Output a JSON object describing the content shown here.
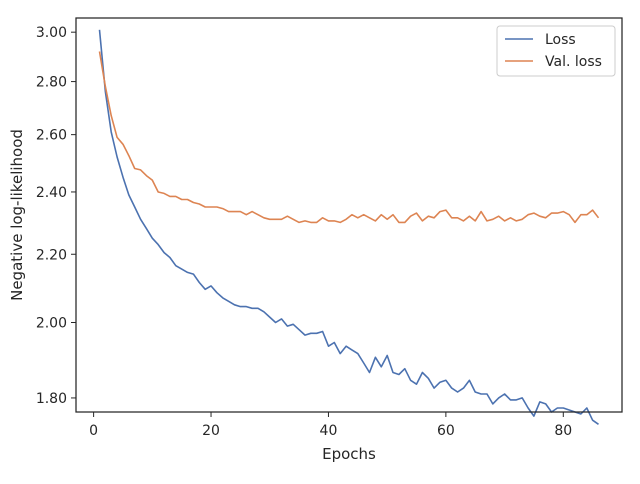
{
  "chart_data": {
    "type": "line",
    "title": "",
    "xlabel": "Epochs",
    "ylabel": "Negative log-likelihood",
    "y_scale": "log",
    "xlim": [
      -3,
      90
    ],
    "ylim": [
      1.765,
      3.06
    ],
    "x_ticks": [
      0,
      20,
      40,
      60,
      80
    ],
    "x_tick_labels": [
      "0",
      "20",
      "40",
      "60",
      "80"
    ],
    "y_ticks": [
      1.8,
      2.0,
      2.2,
      2.4,
      2.6,
      2.8,
      3.0
    ],
    "y_tick_labels": [
      "1.80",
      "2.00",
      "2.20",
      "2.40",
      "2.60",
      "2.80",
      "3.00"
    ],
    "grid": false,
    "legend_position": "top-right",
    "series": [
      {
        "name": "Loss",
        "color": "#4c72b0",
        "x": [
          1,
          2,
          3,
          4,
          5,
          6,
          7,
          8,
          9,
          10,
          11,
          12,
          13,
          14,
          15,
          16,
          17,
          18,
          19,
          20,
          21,
          22,
          23,
          24,
          25,
          26,
          27,
          28,
          29,
          30,
          31,
          32,
          33,
          34,
          35,
          36,
          37,
          38,
          39,
          40,
          41,
          42,
          43,
          44,
          45,
          46,
          47,
          48,
          49,
          50,
          51,
          52,
          53,
          54,
          55,
          56,
          57,
          58,
          59,
          60,
          61,
          62,
          63,
          64,
          65,
          66,
          67,
          68,
          69,
          70,
          71,
          72,
          73,
          74,
          75,
          76,
          77,
          78,
          79,
          80,
          81,
          82,
          83,
          84,
          85,
          86
        ],
        "values": [
          3.01,
          2.76,
          2.61,
          2.52,
          2.45,
          2.39,
          2.35,
          2.31,
          2.28,
          2.25,
          2.23,
          2.205,
          2.19,
          2.165,
          2.155,
          2.145,
          2.14,
          2.115,
          2.095,
          2.105,
          2.085,
          2.07,
          2.06,
          2.05,
          2.045,
          2.045,
          2.04,
          2.04,
          2.03,
          2.015,
          2.0,
          2.01,
          1.99,
          1.995,
          1.98,
          1.965,
          1.97,
          1.97,
          1.975,
          1.935,
          1.945,
          1.915,
          1.935,
          1.925,
          1.915,
          1.89,
          1.865,
          1.905,
          1.88,
          1.91,
          1.865,
          1.86,
          1.875,
          1.845,
          1.835,
          1.865,
          1.85,
          1.825,
          1.84,
          1.845,
          1.825,
          1.815,
          1.825,
          1.845,
          1.815,
          1.81,
          1.81,
          1.785,
          1.8,
          1.81,
          1.795,
          1.795,
          1.8,
          1.775,
          1.755,
          1.79,
          1.785,
          1.765,
          1.775,
          1.775,
          1.77,
          1.765,
          1.76,
          1.775,
          1.745,
          1.735
        ]
      },
      {
        "name": "Val. loss",
        "color": "#dd8452",
        "x": [
          1,
          2,
          3,
          4,
          5,
          6,
          7,
          8,
          9,
          10,
          11,
          12,
          13,
          14,
          15,
          16,
          17,
          18,
          19,
          20,
          21,
          22,
          23,
          24,
          25,
          26,
          27,
          28,
          29,
          30,
          31,
          32,
          33,
          34,
          35,
          36,
          37,
          38,
          39,
          40,
          41,
          42,
          43,
          44,
          45,
          46,
          47,
          48,
          49,
          50,
          51,
          52,
          53,
          54,
          55,
          56,
          57,
          58,
          59,
          60,
          61,
          62,
          63,
          64,
          65,
          66,
          67,
          68,
          69,
          70,
          71,
          72,
          73,
          74,
          75,
          76,
          77,
          78,
          79,
          80,
          81,
          82,
          83,
          84,
          85,
          86
        ],
        "values": [
          2.92,
          2.78,
          2.67,
          2.59,
          2.565,
          2.525,
          2.48,
          2.475,
          2.455,
          2.44,
          2.4,
          2.395,
          2.385,
          2.385,
          2.375,
          2.375,
          2.365,
          2.36,
          2.35,
          2.35,
          2.35,
          2.345,
          2.335,
          2.335,
          2.335,
          2.325,
          2.335,
          2.325,
          2.315,
          2.31,
          2.31,
          2.31,
          2.32,
          2.31,
          2.3,
          2.305,
          2.3,
          2.3,
          2.315,
          2.305,
          2.305,
          2.3,
          2.31,
          2.325,
          2.315,
          2.325,
          2.315,
          2.305,
          2.325,
          2.31,
          2.325,
          2.3,
          2.3,
          2.32,
          2.33,
          2.305,
          2.32,
          2.315,
          2.335,
          2.34,
          2.315,
          2.315,
          2.305,
          2.32,
          2.305,
          2.335,
          2.305,
          2.31,
          2.32,
          2.305,
          2.315,
          2.305,
          2.31,
          2.325,
          2.33,
          2.32,
          2.315,
          2.33,
          2.33,
          2.335,
          2.325,
          2.3,
          2.325,
          2.325,
          2.34,
          2.315
        ]
      }
    ]
  }
}
